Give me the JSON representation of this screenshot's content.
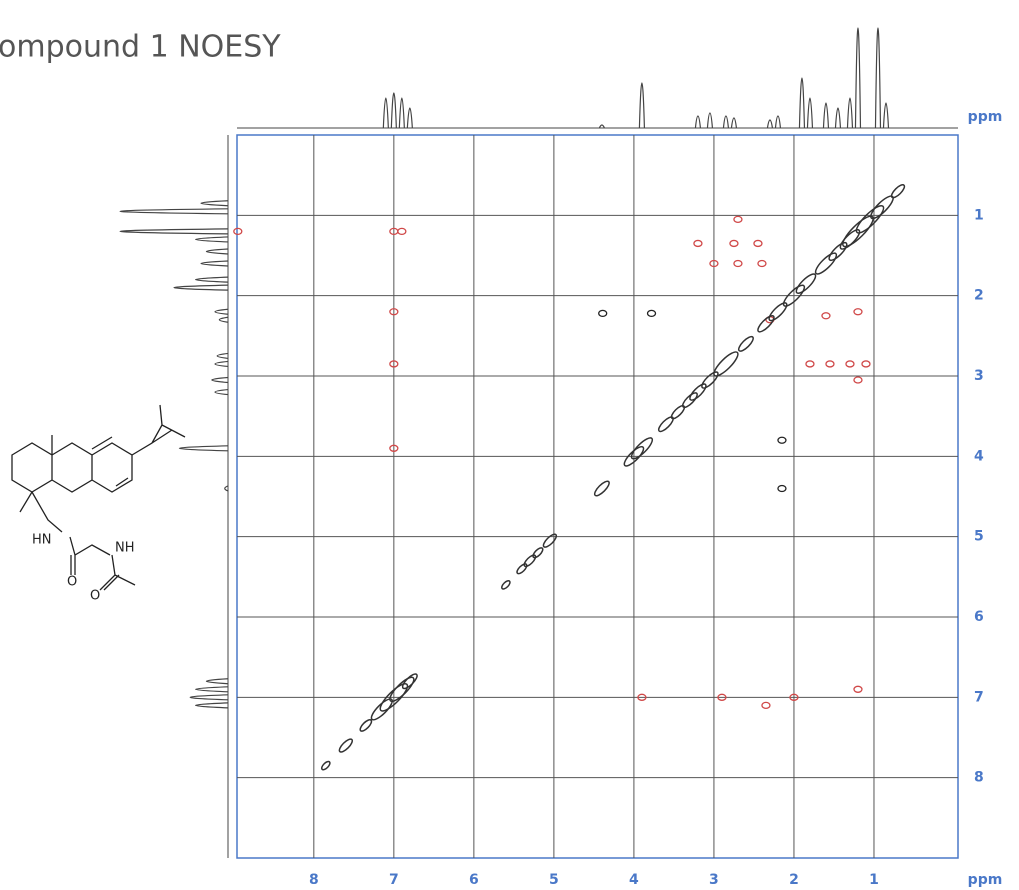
{
  "chart_data": {
    "type": "nmr2d",
    "title": "ompound 1 NOESY",
    "xlabel": "ppm",
    "ylabel": "ppm",
    "xlim": [
      8.96,
      -0.05
    ],
    "ylim": [
      0,
      9.0
    ],
    "xticks": [
      8,
      7,
      6,
      5,
      4,
      3,
      2,
      1
    ],
    "yticks": [
      1,
      2,
      3,
      4,
      5,
      6,
      7,
      8
    ],
    "grid": true,
    "axis_color": "#4a78c8",
    "diagonal": {
      "color": "#333333",
      "shifts": [
        7.85,
        7.6,
        7.35,
        7.15,
        7.0,
        6.9,
        6.8,
        5.6,
        5.4,
        5.3,
        5.2,
        5.05,
        4.4,
        4.0,
        3.9,
        3.6,
        3.45,
        3.3,
        3.2,
        3.05,
        2.85,
        2.6,
        2.35,
        2.2,
        2.0,
        1.85,
        1.6,
        1.45,
        1.3,
        1.2,
        1.05,
        0.9,
        0.7
      ],
      "intensities": [
        0.1,
        0.25,
        0.2,
        0.5,
        0.7,
        0.6,
        0.3,
        0.1,
        0.15,
        0.2,
        0.15,
        0.25,
        0.3,
        0.45,
        0.5,
        0.3,
        0.25,
        0.3,
        0.35,
        0.35,
        0.6,
        0.3,
        0.35,
        0.4,
        0.5,
        0.45,
        0.5,
        0.4,
        0.45,
        0.8,
        0.7,
        0.55,
        0.25
      ]
    },
    "cross_peaks": [
      {
        "color": "#d04848",
        "x": [
          7.0,
          6.9,
          7.0,
          7.0,
          7.0,
          8.95,
          3.9,
          2.9,
          2.35,
          2.0,
          1.2,
          3.2,
          2.75,
          2.45,
          3.0,
          2.7,
          2.4,
          1.8,
          1.55,
          1.3,
          1.1,
          1.2,
          2.3,
          1.6,
          1.2,
          2.7
        ],
        "y": [
          1.2,
          1.2,
          2.2,
          2.85,
          3.9,
          1.2,
          7.0,
          7.0,
          7.1,
          7.0,
          6.9,
          1.35,
          1.35,
          1.35,
          1.6,
          1.6,
          1.6,
          2.85,
          2.85,
          2.85,
          2.85,
          3.05,
          2.3,
          2.25,
          2.2,
          1.05
        ]
      },
      {
        "color": "#222222",
        "x": [
          4.39,
          3.78,
          2.15,
          2.15
        ],
        "y": [
          2.22,
          2.22,
          3.8,
          4.4
        ]
      }
    ],
    "projection": {
      "color": "#444444",
      "shifts": [
        7.1,
        7.0,
        6.9,
        6.8,
        4.4,
        3.9,
        3.2,
        3.05,
        2.85,
        2.75,
        2.3,
        2.2,
        1.9,
        1.8,
        1.6,
        1.45,
        1.3,
        1.2,
        0.95,
        0.85
      ],
      "heights": [
        0.3,
        0.35,
        0.3,
        0.2,
        0.03,
        0.45,
        0.12,
        0.15,
        0.12,
        0.1,
        0.08,
        0.12,
        0.5,
        0.3,
        0.25,
        0.2,
        0.3,
        1.0,
        1.0,
        0.25
      ]
    },
    "structure_labels": [
      "HN",
      "NH",
      "O",
      "O"
    ]
  }
}
